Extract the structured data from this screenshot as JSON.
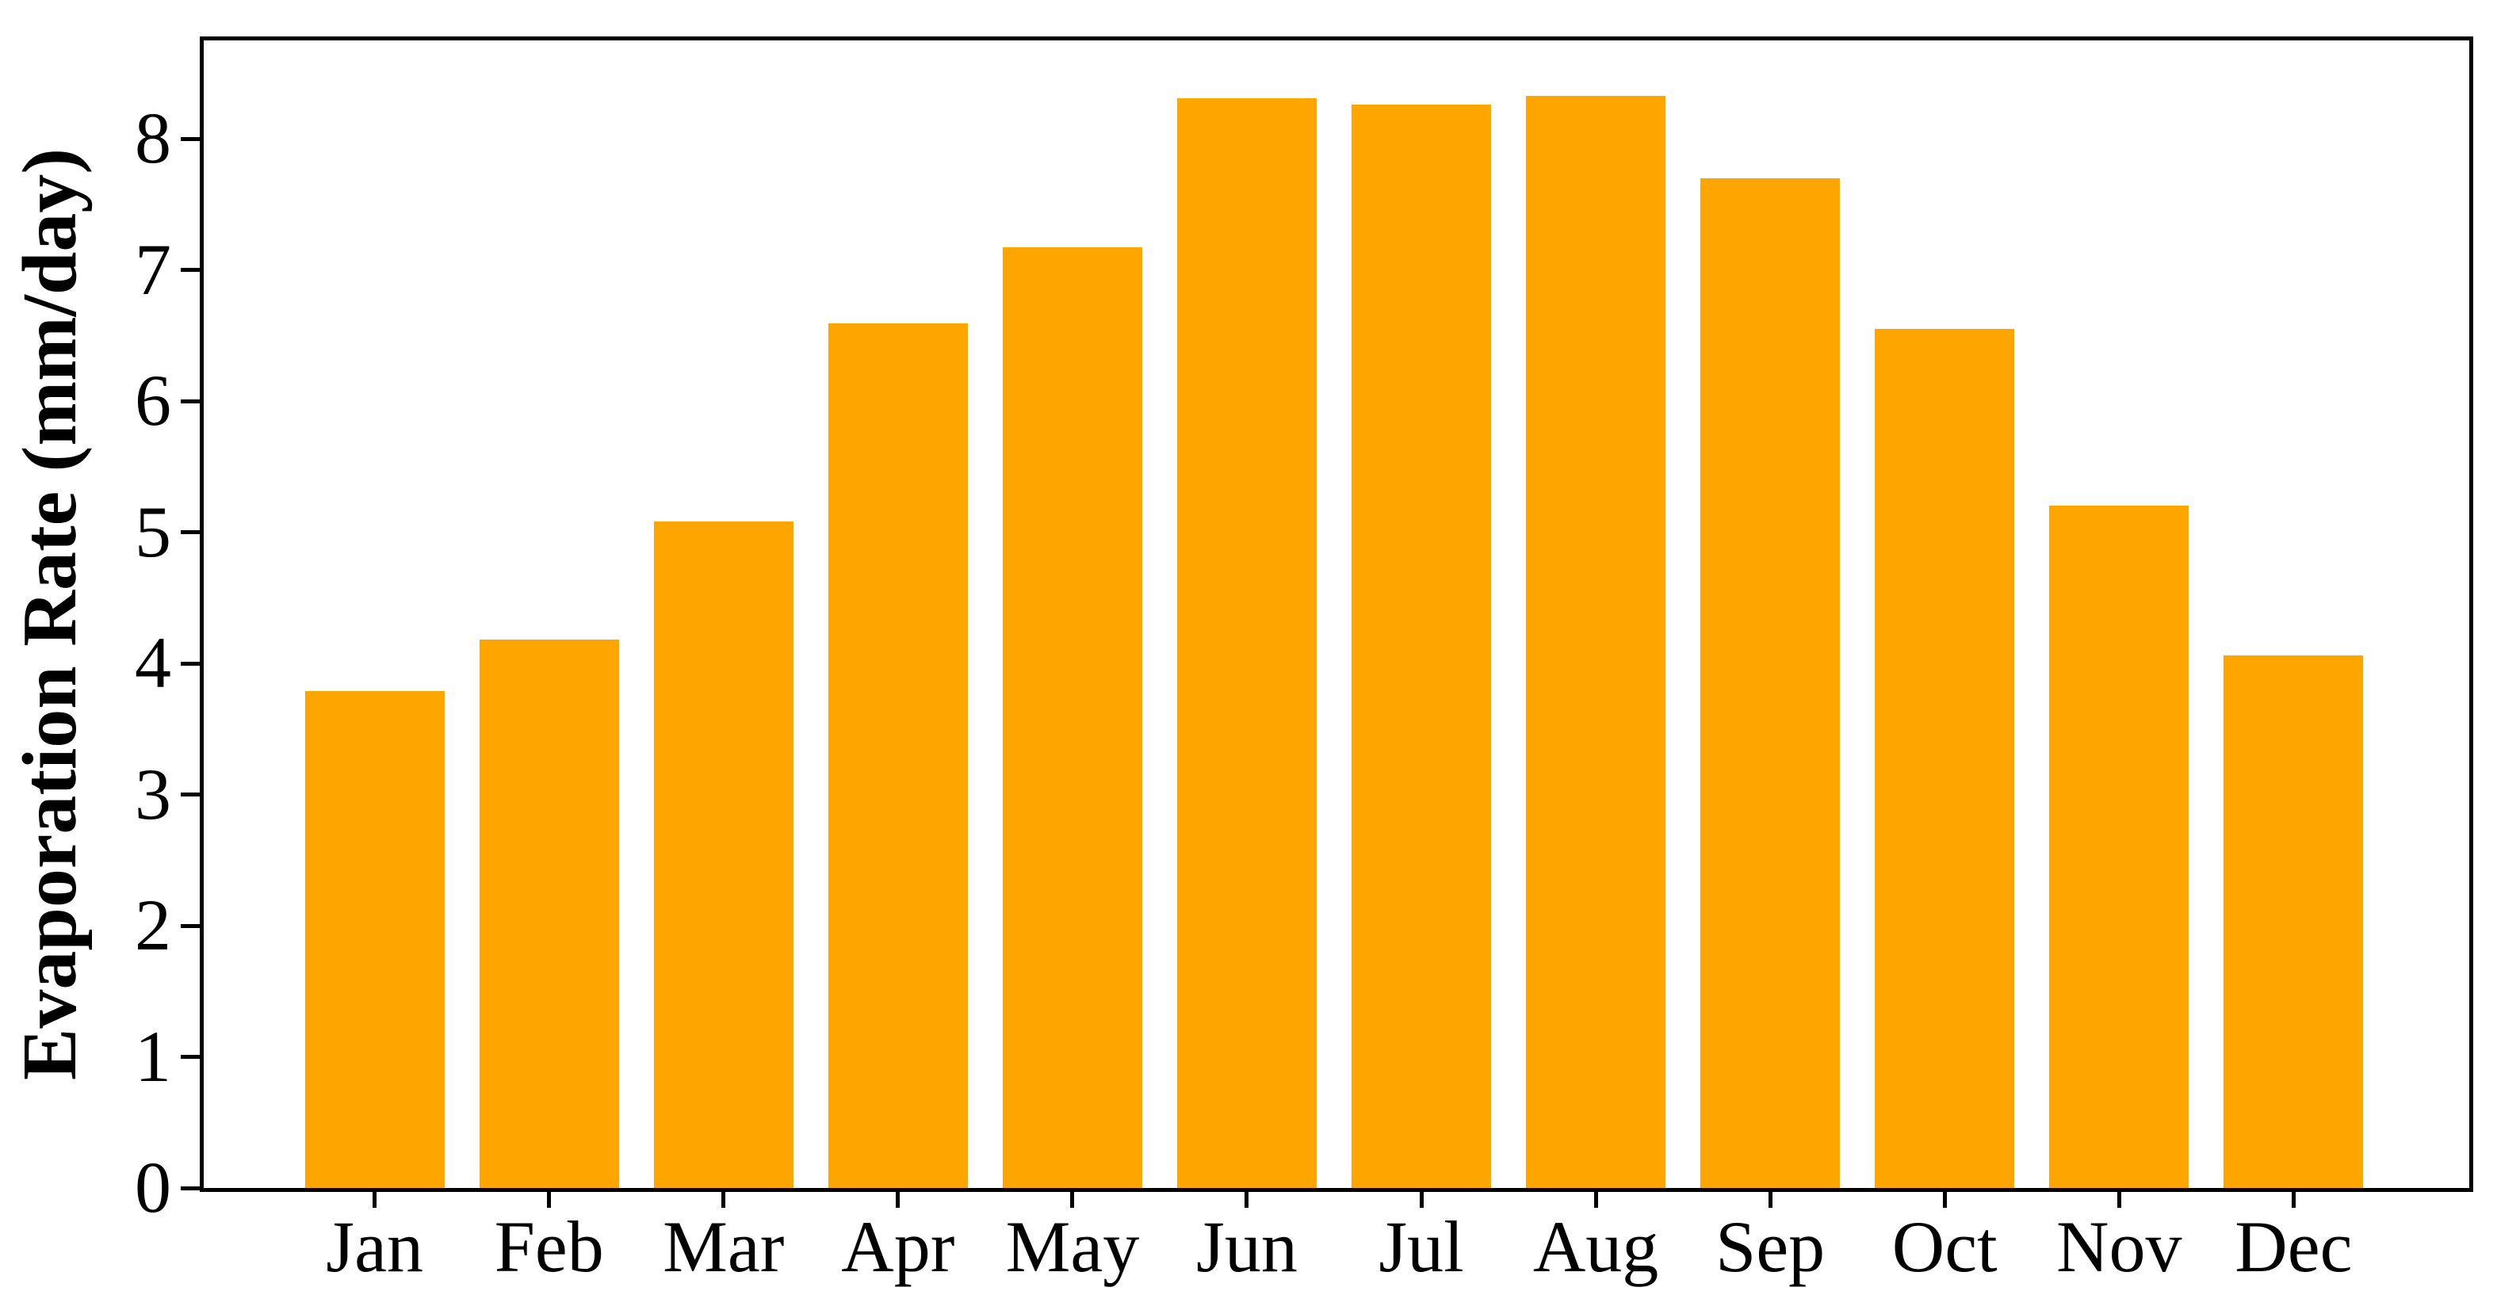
{
  "chart_data": {
    "type": "bar",
    "title": "",
    "xlabel": "",
    "ylabel": "Evaporation Rate (mm/day)",
    "categories": [
      "Jan",
      "Feb",
      "Mar",
      "Apr",
      "May",
      "Jun",
      "Jul",
      "Aug",
      "Sep",
      "Oct",
      "Nov",
      "Dec"
    ],
    "values": [
      3.79,
      4.18,
      5.08,
      6.59,
      7.17,
      8.31,
      8.26,
      8.33,
      7.7,
      6.55,
      5.2,
      4.06
    ],
    "ylim": [
      0,
      8.75
    ],
    "yticks": [
      0,
      1,
      2,
      3,
      4,
      5,
      6,
      7,
      8
    ],
    "grid": false,
    "legend": "none",
    "bar_color": "#FFA500",
    "axis_color": "#000000",
    "background_color": "#ffffff"
  }
}
